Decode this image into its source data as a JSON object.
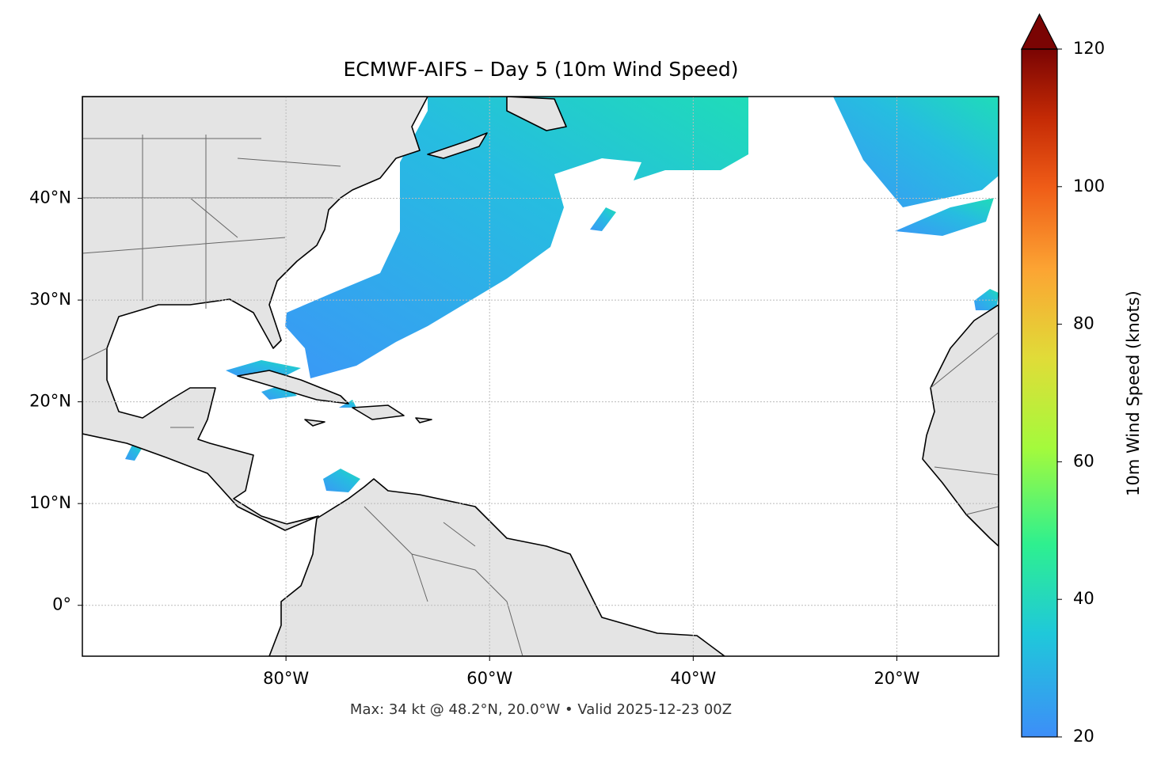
{
  "chart_data": {
    "type": "map",
    "title": "ECMWF-AIFS – Day 5 (10m Wind Speed)",
    "annotation": "Max: 34 kt @ 48.2°N, 20.0°W • Valid 2025-12-23 00Z",
    "xlim": [
      -100,
      -10
    ],
    "ylim": [
      -5,
      50
    ],
    "xticks": [
      {
        "value": -80,
        "label": "80°W"
      },
      {
        "value": -60,
        "label": "60°W"
      },
      {
        "value": -40,
        "label": "40°W"
      },
      {
        "value": -20,
        "label": "20°W"
      }
    ],
    "yticks": [
      {
        "value": 0,
        "label": "0°"
      },
      {
        "value": 10,
        "label": "10°N"
      },
      {
        "value": 20,
        "label": "20°N"
      },
      {
        "value": 30,
        "label": "30°N"
      },
      {
        "value": 40,
        "label": "40°N"
      }
    ],
    "grid": true,
    "colorbar": {
      "label": "10m Wind Speed (knots)",
      "lim": [
        20,
        120
      ],
      "ticks": [
        20,
        40,
        60,
        80,
        100,
        120
      ]
    }
  }
}
